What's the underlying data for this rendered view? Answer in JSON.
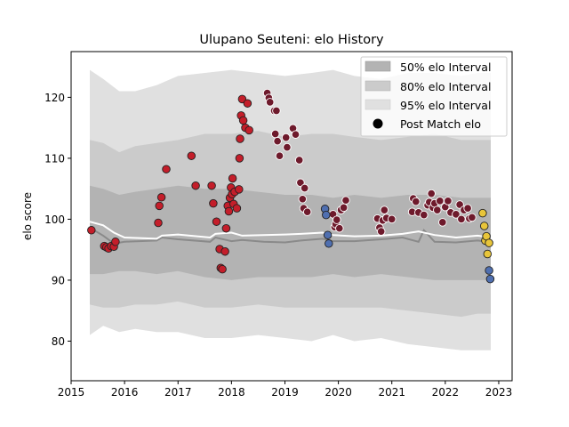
{
  "chart_data": {
    "type": "scatter",
    "title": "Ulupano Seuteni: elo History",
    "xlabel": "",
    "ylabel": "elo score",
    "xlim": [
      2015.0,
      2023.25
    ],
    "ylim": [
      73.5,
      127.5
    ],
    "xticks": [
      2015,
      2016,
      2017,
      2018,
      2019,
      2020,
      2021,
      2022,
      2023
    ],
    "yticks": [
      80,
      90,
      100,
      110,
      120
    ],
    "legend": {
      "position": "top-right",
      "entries": [
        "50% elo Interval",
        "80% elo Interval",
        "95% elo Interval",
        "Post Match elo"
      ]
    },
    "colors": {
      "band95": "#e0e0e0",
      "band80": "#cbcbcb",
      "band50": "#b3b3b3",
      "mean_line": "#ffffff",
      "median_line": "#8a8a8a",
      "red": "#c41e2a",
      "maroon": "#6e1a2c",
      "blue": "#4f6fb0",
      "yellow": "#e8c53a"
    },
    "bands": {
      "x": [
        2015.35,
        2015.6,
        2015.9,
        2016.2,
        2016.6,
        2017.0,
        2017.5,
        2018.0,
        2018.5,
        2019.0,
        2019.5,
        2019.9,
        2020.3,
        2020.8,
        2021.3,
        2021.8,
        2022.3,
        2022.6,
        2022.85
      ],
      "p95_upper": [
        124.5,
        123.0,
        121.0,
        121.0,
        122.0,
        123.5,
        124.0,
        124.5,
        124.0,
        123.5,
        124.0,
        124.5,
        123.5,
        123.0,
        124.0,
        124.0,
        123.5,
        124.0,
        124.0
      ],
      "p95_lower": [
        81.0,
        82.5,
        81.5,
        82.0,
        81.5,
        81.5,
        80.5,
        80.5,
        81.0,
        80.5,
        80.0,
        81.0,
        80.0,
        80.5,
        79.5,
        79.0,
        78.5,
        78.5,
        78.5
      ],
      "p80_upper": [
        113.0,
        112.5,
        111.0,
        112.0,
        112.5,
        113.0,
        114.0,
        114.0,
        114.5,
        113.5,
        114.0,
        114.0,
        113.5,
        113.0,
        113.5,
        114.0,
        113.0,
        113.0,
        113.0
      ],
      "p80_lower": [
        86.0,
        85.5,
        85.5,
        86.0,
        86.0,
        86.5,
        85.5,
        85.5,
        86.0,
        85.5,
        85.5,
        85.5,
        85.5,
        85.5,
        85.0,
        84.5,
        84.0,
        84.5,
        84.5
      ],
      "p50_upper": [
        105.5,
        105.0,
        104.0,
        104.5,
        105.0,
        105.5,
        105.0,
        105.0,
        104.5,
        104.0,
        104.0,
        103.5,
        104.0,
        103.5,
        104.0,
        104.0,
        103.5,
        103.5,
        103.5
      ],
      "p50_lower": [
        91.0,
        91.0,
        91.5,
        91.5,
        91.0,
        91.5,
        90.5,
        90.0,
        90.5,
        90.5,
        90.5,
        91.0,
        90.5,
        91.0,
        90.5,
        90.0,
        90.0,
        90.0,
        90.0
      ]
    },
    "mean_line": {
      "x": [
        2015.35,
        2015.6,
        2015.8,
        2016.0,
        2016.6,
        2016.7,
        2017.0,
        2017.6,
        2017.7,
        2018.0,
        2018.2,
        2018.6,
        2019.0,
        2019.3,
        2019.7,
        2019.9,
        2020.3,
        2020.8,
        2021.2,
        2021.5,
        2021.8,
        2022.2,
        2022.6,
        2022.8
      ],
      "y": [
        99.6,
        99.0,
        97.8,
        97.0,
        96.8,
        97.3,
        97.5,
        97.0,
        97.6,
        97.8,
        97.3,
        97.4,
        97.5,
        97.6,
        97.8,
        97.4,
        97.2,
        97.3,
        97.6,
        98.0,
        97.4,
        97.0,
        97.3,
        97.1
      ]
    },
    "median_line": {
      "x": [
        2015.35,
        2015.6,
        2015.8,
        2016.0,
        2016.6,
        2016.7,
        2017.0,
        2017.6,
        2017.7,
        2018.0,
        2018.2,
        2018.6,
        2019.0,
        2019.3,
        2019.7,
        2019.9,
        2020.3,
        2020.8,
        2021.2,
        2021.5,
        2021.6,
        2021.8,
        2022.2,
        2022.6,
        2022.8
      ],
      "y": [
        98.6,
        97.3,
        96.0,
        96.3,
        96.5,
        97.0,
        96.7,
        96.3,
        97.0,
        96.4,
        96.6,
        96.3,
        96.2,
        96.5,
        96.8,
        96.4,
        96.4,
        96.7,
        97.0,
        96.3,
        98.2,
        96.3,
        96.2,
        96.5,
        96.3
      ]
    },
    "series": [
      {
        "color": "red",
        "points": [
          [
            2015.38,
            98.2
          ],
          [
            2015.62,
            95.6
          ],
          [
            2015.66,
            95.4
          ],
          [
            2015.7,
            95.2
          ],
          [
            2015.75,
            95.6
          ],
          [
            2015.8,
            95.5
          ],
          [
            2015.83,
            96.3
          ],
          [
            2016.63,
            99.4
          ],
          [
            2016.65,
            102.2
          ],
          [
            2016.69,
            103.6
          ],
          [
            2016.78,
            108.2
          ],
          [
            2017.25,
            110.4
          ],
          [
            2017.33,
            105.5
          ],
          [
            2017.63,
            105.5
          ],
          [
            2017.66,
            102.6
          ],
          [
            2017.72,
            99.6
          ],
          [
            2017.78,
            95.1
          ],
          [
            2017.8,
            92.0
          ],
          [
            2017.83,
            91.8
          ],
          [
            2017.88,
            94.7
          ],
          [
            2017.9,
            98.5
          ],
          [
            2017.93,
            102.2
          ],
          [
            2017.95,
            101.3
          ],
          [
            2017.97,
            103.5
          ],
          [
            2017.99,
            105.2
          ],
          [
            2018.01,
            104.1
          ],
          [
            2018.02,
            106.7
          ],
          [
            2018.04,
            102.5
          ],
          [
            2018.06,
            104.5
          ],
          [
            2018.1,
            101.8
          ],
          [
            2018.14,
            104.9
          ],
          [
            2018.15,
            110.0
          ],
          [
            2018.16,
            113.2
          ],
          [
            2018.18,
            117.0
          ],
          [
            2018.2,
            119.7
          ],
          [
            2018.22,
            116.2
          ],
          [
            2018.26,
            115.0
          ],
          [
            2018.3,
            119.0
          ],
          [
            2018.33,
            114.6
          ]
        ]
      },
      {
        "color": "maroon",
        "points": [
          [
            2018.67,
            120.7
          ],
          [
            2018.7,
            119.9
          ],
          [
            2018.72,
            119.2
          ],
          [
            2018.8,
            117.8
          ],
          [
            2018.84,
            117.8
          ],
          [
            2018.82,
            114.0
          ],
          [
            2018.86,
            112.8
          ],
          [
            2018.9,
            110.4
          ],
          [
            2019.02,
            113.4
          ],
          [
            2019.04,
            111.8
          ],
          [
            2019.15,
            114.9
          ],
          [
            2019.2,
            113.9
          ],
          [
            2019.27,
            109.7
          ],
          [
            2019.29,
            106.0
          ],
          [
            2019.33,
            103.3
          ],
          [
            2019.37,
            105.1
          ],
          [
            2019.35,
            101.8
          ],
          [
            2019.42,
            101.2
          ],
          [
            2019.9,
            100.8
          ],
          [
            2019.93,
            98.7
          ],
          [
            2019.95,
            99.2
          ],
          [
            2019.97,
            99.9
          ],
          [
            2020.02,
            98.5
          ],
          [
            2020.05,
            101.5
          ],
          [
            2020.1,
            101.9
          ],
          [
            2020.14,
            103.1
          ],
          [
            2020.73,
            100.1
          ],
          [
            2020.77,
            98.6
          ],
          [
            2020.8,
            98.0
          ],
          [
            2020.83,
            99.8
          ],
          [
            2020.86,
            101.5
          ],
          [
            2020.9,
            100.2
          ],
          [
            2021.0,
            100.0
          ],
          [
            2021.38,
            101.2
          ],
          [
            2021.4,
            103.4
          ],
          [
            2021.45,
            102.9
          ],
          [
            2021.5,
            101.1
          ],
          [
            2021.6,
            100.7
          ],
          [
            2021.67,
            102.3
          ],
          [
            2021.7,
            102.8
          ],
          [
            2021.74,
            104.2
          ],
          [
            2021.77,
            101.9
          ],
          [
            2021.8,
            102.6
          ],
          [
            2021.85,
            101.5
          ],
          [
            2021.9,
            103.0
          ],
          [
            2021.95,
            99.5
          ],
          [
            2022.0,
            102.0
          ],
          [
            2022.05,
            103.0
          ],
          [
            2022.1,
            101.1
          ],
          [
            2022.2,
            100.8
          ],
          [
            2022.27,
            102.4
          ],
          [
            2022.3,
            100.0
          ],
          [
            2022.35,
            101.5
          ],
          [
            2022.42,
            101.8
          ],
          [
            2022.45,
            100.1
          ],
          [
            2022.5,
            100.3
          ]
        ]
      },
      {
        "color": "blue",
        "points": [
          [
            2019.75,
            101.7
          ],
          [
            2019.77,
            100.7
          ],
          [
            2019.8,
            97.4
          ],
          [
            2019.82,
            96.0
          ],
          [
            2022.82,
            91.6
          ],
          [
            2022.84,
            90.2
          ]
        ]
      },
      {
        "color": "yellow",
        "points": [
          [
            2022.7,
            101.0
          ],
          [
            2022.73,
            98.9
          ],
          [
            2022.75,
            96.5
          ],
          [
            2022.77,
            97.2
          ],
          [
            2022.79,
            94.3
          ],
          [
            2022.82,
            96.1
          ]
        ]
      }
    ]
  }
}
